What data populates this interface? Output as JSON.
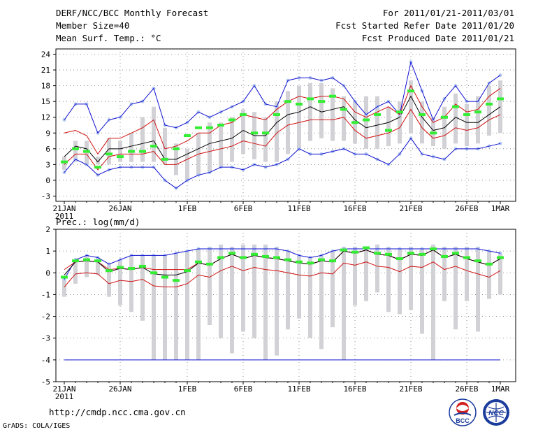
{
  "header": {
    "title": "DERF/NCC/BCC Monthly Forecast",
    "member_size": "Member Size=40",
    "variable": "Mean Surf. Temp.: °C",
    "period": "For 2011/01/21-2011/03/01",
    "started": "Fcst Started Refer Date 2011/01/20",
    "produced": "Fcst Produced Date 2011/01/21"
  },
  "footer": {
    "url": "http://cmdp.ncc.cma.gov.cn",
    "credit": "GrADS: COLA/IGES",
    "logo_left_text": "BCC",
    "logo_right_text": "NCC"
  },
  "colors": {
    "blue": "#1010d0",
    "red": "#d01010",
    "black": "#000000",
    "green": "#33ee33",
    "grey": "#d2d2d6",
    "lightblue": "#b4c8f0"
  },
  "chart_data": [
    {
      "type": "line",
      "title": "Mean Surf. Temp.: °C",
      "x_ticks": [
        {
          "day": 0,
          "label": "21JAN",
          "sub": "2011"
        },
        {
          "day": 5,
          "label": "26JAN"
        },
        {
          "day": 11,
          "label": "1FEB"
        },
        {
          "day": 16,
          "label": "6FEB"
        },
        {
          "day": 21,
          "label": "11FEB"
        },
        {
          "day": 26,
          "label": "16FEB"
        },
        {
          "day": 31,
          "label": "21FEB"
        },
        {
          "day": 36,
          "label": "26FEB"
        },
        {
          "day": 39,
          "label": "1MAR"
        }
      ],
      "xlim": [
        0,
        39
      ],
      "ylim": [
        -4,
        25
      ],
      "y_ticks": [
        -3,
        0,
        3,
        6,
        9,
        12,
        15,
        18,
        21,
        24
      ],
      "bars_low": [
        2,
        3.5,
        3,
        3,
        3,
        3.5,
        3.5,
        3.5,
        3.5,
        3,
        1,
        0,
        1,
        1.5,
        2.5,
        3.5,
        5,
        4,
        3.5,
        3.5,
        5,
        6,
        7.5,
        8,
        7.5,
        7.5,
        7,
        6,
        6,
        6.5,
        7,
        9,
        7,
        6.5,
        6,
        7,
        6.5,
        7,
        8.5,
        9
      ],
      "bars_high": [
        4.5,
        7.5,
        7.5,
        4.5,
        8,
        7.5,
        9,
        12,
        14,
        10,
        7,
        6,
        9,
        11,
        11,
        12,
        13.5,
        13,
        12,
        15,
        17,
        18,
        18.5,
        18.5,
        17.5,
        16,
        15,
        16,
        16,
        14,
        15,
        19,
        15,
        12,
        14,
        16.5,
        14.5,
        16,
        18,
        19
      ],
      "green": [
        3.5,
        6,
        5.5,
        2.5,
        5,
        4.5,
        5.5,
        5.5,
        6.5,
        4,
        6,
        8.5,
        10,
        10,
        10.5,
        11.5,
        12.5,
        9,
        9,
        12.5,
        15,
        14.5,
        15.5,
        15,
        16,
        13.5,
        11,
        11.5,
        12.5,
        9.5,
        13,
        17,
        12.5,
        9,
        12,
        14,
        12.5,
        13,
        14.5,
        15.5
      ],
      "series": [
        {
          "name": "Ensemble mean",
          "color": "#000000",
          "values": [
            4.5,
            6.5,
            6,
            3.5,
            6,
            6,
            6.5,
            7,
            7.5,
            4,
            4,
            5,
            6,
            7,
            7.5,
            8,
            9.5,
            8.5,
            8.5,
            11,
            12.5,
            13,
            14,
            13,
            13.5,
            14,
            11.5,
            10,
            10.5,
            11,
            12,
            16,
            12,
            9.5,
            10,
            12,
            11,
            11,
            12.5,
            14
          ]
        },
        {
          "name": "Member max (blue)",
          "color": "#1010d0",
          "values": [
            11.5,
            14.5,
            14.5,
            9,
            11.5,
            12,
            14.5,
            15,
            17.5,
            10.5,
            10,
            11,
            13,
            12,
            13,
            14,
            15,
            18,
            14.5,
            14,
            19,
            19.5,
            19.5,
            19,
            19.5,
            18,
            15,
            12.5,
            14,
            15,
            12.5,
            22.5,
            17,
            11.5,
            15.5,
            18,
            15,
            15,
            18.5,
            20
          ]
        },
        {
          "name": "Member min (blue)",
          "color": "#1010d0",
          "values": [
            1.5,
            4,
            3,
            1,
            2,
            2.5,
            2.5,
            2.5,
            2.5,
            0,
            -1.5,
            0,
            1,
            1.5,
            2.5,
            2.5,
            2,
            3,
            2.5,
            3,
            4,
            6,
            5,
            5,
            5.5,
            6,
            5,
            5,
            4,
            3,
            5,
            8,
            5,
            4.5,
            4,
            6,
            6,
            6,
            6.5,
            7
          ]
        },
        {
          "name": "Upper bound (red)",
          "color": "#d01010",
          "values": [
            9,
            9.5,
            8.5,
            5,
            8,
            8,
            9,
            10,
            11.5,
            6,
            6.5,
            7.5,
            9,
            9,
            10.5,
            11,
            12.5,
            12,
            11.5,
            13.5,
            15,
            16,
            15.5,
            16,
            16,
            15.5,
            13,
            12,
            13,
            14,
            12.5,
            18,
            14,
            11,
            12,
            14.5,
            13,
            13.5,
            16,
            17.5
          ]
        },
        {
          "name": "Lower bound (red)",
          "color": "#d01010",
          "values": [
            3,
            5,
            5,
            2,
            4.5,
            5,
            5,
            5,
            5.5,
            3,
            3,
            4,
            5,
            5.5,
            6,
            6.5,
            7.5,
            7,
            6.5,
            9,
            10.5,
            11,
            11.5,
            11.5,
            11.5,
            12,
            9.5,
            8,
            8.5,
            9,
            10,
            13.5,
            10,
            8,
            8.5,
            10,
            9.5,
            10,
            11.5,
            12.5
          ]
        }
      ]
    },
    {
      "type": "line",
      "title": "Prec.: log(mm/d)",
      "x_ticks": [
        {
          "day": 0,
          "label": "21JAN",
          "sub": "2011"
        },
        {
          "day": 5,
          "label": "26JAN"
        },
        {
          "day": 11,
          "label": "1FEB"
        },
        {
          "day": 16,
          "label": "6FEB"
        },
        {
          "day": 21,
          "label": "11FEB"
        },
        {
          "day": 26,
          "label": "16FEB"
        },
        {
          "day": 31,
          "label": "21FEB"
        },
        {
          "day": 36,
          "label": "26FEB"
        },
        {
          "day": 39,
          "label": "1MAR"
        }
      ],
      "xlim": [
        0,
        39
      ],
      "ylim": [
        -5,
        2
      ],
      "y_ticks": [
        -5,
        -4,
        -3,
        -2,
        -1,
        0,
        1,
        2
      ],
      "bars_low": [
        -1.1,
        -0.5,
        -0.2,
        -0.1,
        -1.1,
        -1.5,
        -1.8,
        -2.2,
        -4,
        -4,
        -4,
        -4,
        -4,
        -2.4,
        -3,
        -3.7,
        -2.7,
        -3,
        -4,
        -3.8,
        -2.6,
        -2.1,
        -3,
        -3.5,
        -2.5,
        -4,
        -1.5,
        -1.3,
        -0.9,
        -1.8,
        -1.9,
        -1.7,
        -2.8,
        -4,
        -1.3,
        -2.6,
        -1.3,
        -2.7,
        -1.2,
        -1
      ],
      "bars_high": [
        -0.3,
        0.6,
        0.8,
        0.7,
        0.4,
        0.6,
        0.8,
        0.8,
        0.8,
        0.8,
        0.9,
        1,
        1.1,
        1.2,
        1.3,
        1.2,
        1.3,
        1.3,
        1.3,
        1.2,
        1,
        0.8,
        0.7,
        0.8,
        1,
        1.2,
        1.2,
        1.1,
        1.3,
        1.2,
        1.1,
        1.2,
        1.1,
        1.3,
        1.2,
        1.2,
        1.2,
        1.2,
        1,
        0.9
      ],
      "green": [
        -0.2,
        0.55,
        0.6,
        0.55,
        0.1,
        0.25,
        0.2,
        0.3,
        0,
        -0.2,
        -0.35,
        0.1,
        0.5,
        0.4,
        0.7,
        0.9,
        0.7,
        0.85,
        0.75,
        0.7,
        0.6,
        0.5,
        0.45,
        0.6,
        0.55,
        1.05,
        0.95,
        1.15,
        0.9,
        0.85,
        0.65,
        0.9,
        0.85,
        1.1,
        0.75,
        0.9,
        0.7,
        0.55,
        0.4,
        0.7
      ]
    }
  ]
}
